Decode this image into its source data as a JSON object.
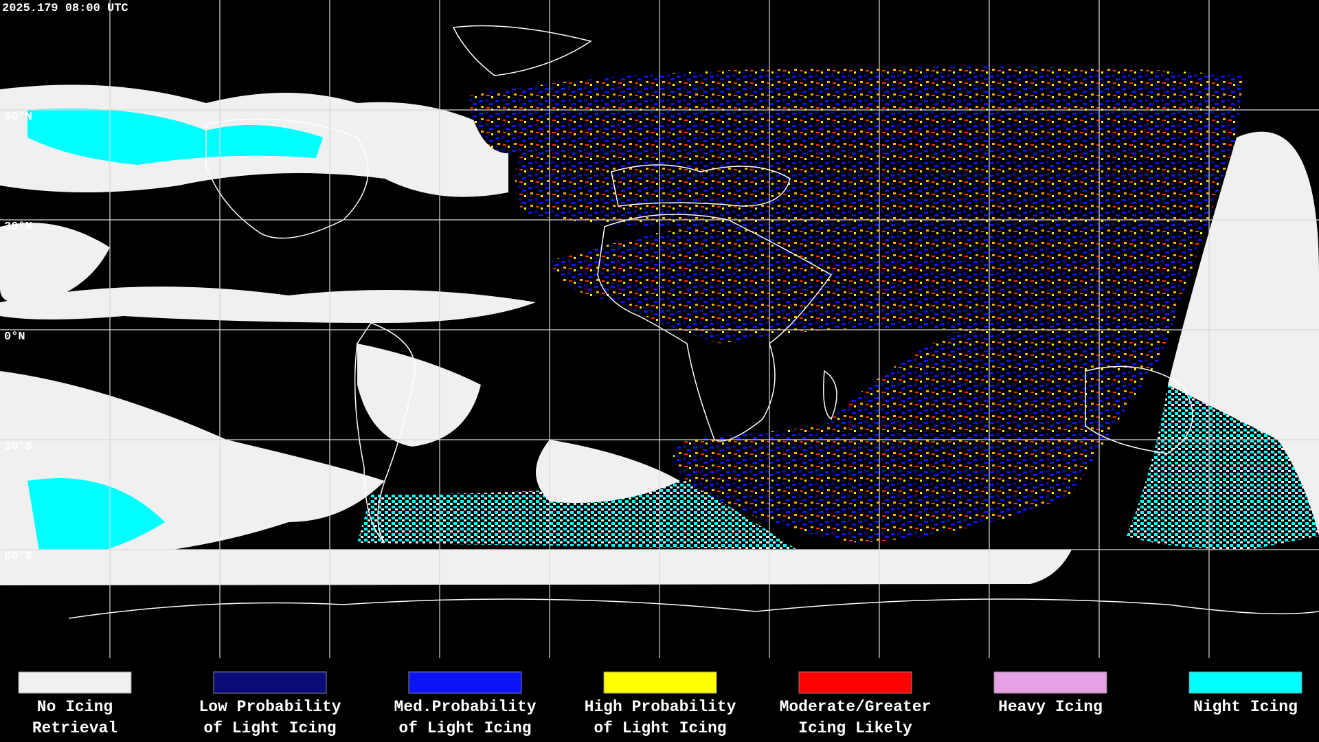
{
  "timestamp": "2025.179 08:00 UTC",
  "latitude_labels": [
    "60°N",
    "30°N",
    "0°N",
    "30°S",
    "60°S"
  ],
  "legend": [
    {
      "lines": [
        "No Icing",
        "Retrieval"
      ],
      "color": "#f0f0f0"
    },
    {
      "lines": [
        "Low Probability",
        "of Light Icing"
      ],
      "color": "#0a0a78"
    },
    {
      "lines": [
        "Med.Probability",
        "of Light Icing"
      ],
      "color": "#0a14f5"
    },
    {
      "lines": [
        "High Probability",
        "of Light Icing"
      ],
      "color": "#ffff00"
    },
    {
      "lines": [
        "Moderate/Greater",
        "Icing Likely"
      ],
      "color": "#ff0000"
    },
    {
      "lines": [
        "Heavy Icing"
      ],
      "color": "#e6a0e6"
    },
    {
      "lines": [
        "Night Icing"
      ],
      "color": "#00ffff"
    }
  ]
}
